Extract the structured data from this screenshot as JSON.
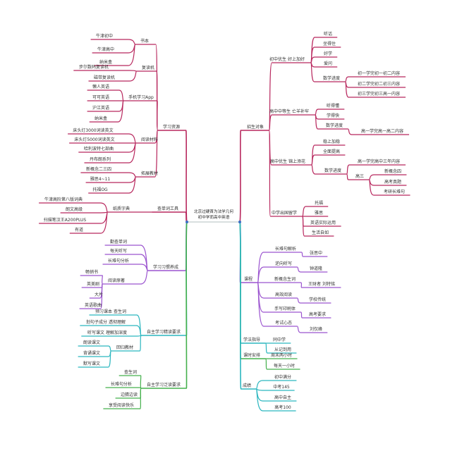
{
  "center": {
    "title_line1": "北京过硬首为法学几何",
    "title_line2": "初中学而高中英语"
  },
  "colors": {
    "pink": "#b8285e",
    "purple": "#9b54cf",
    "teal": "#2bb6bf",
    "green": "#44b04c",
    "hub": "#3a6fc4"
  },
  "left": [
    {
      "label": "学习资源",
      "color": "pink",
      "children": [
        {
          "label": "书本",
          "children": [
            {
              "label": "牛津初中"
            },
            {
              "label": "牛津高中"
            },
            {
              "label": "纳米盒"
            }
          ]
        },
        {
          "label": "复读机",
          "children": [
            {
              "label": "步尔数码复读机"
            },
            {
              "label": "磁带复读机"
            }
          ]
        },
        {
          "label": "手机学习App",
          "children": [
            {
              "label": "懒人英语"
            },
            {
              "label": "可可英语"
            },
            {
              "label": "沪江英语"
            },
            {
              "label": "纳米盒"
            }
          ]
        },
        {
          "label": "阅读材料",
          "children": [
            {
              "label": "床头灯3000词读英文"
            },
            {
              "label": "床头灯5000词读英文"
            },
            {
              "label": "哈利波特七部曲"
            },
            {
              "label": "丹布朗系列"
            }
          ]
        },
        {
          "label": "拓展教材",
          "children": [
            {
              "label": "新概念二三四"
            },
            {
              "label": "雅思4~11"
            },
            {
              "label": "托福OG"
            }
          ]
        }
      ]
    },
    {
      "label": "查单词工具",
      "color": "pink",
      "children": [
        {
          "label": "纸质字典",
          "children": [
            {
              "label": "牛津高阶第八版词典"
            },
            {
              "label": "朗文高级"
            },
            {
              "label": "扫描笔汉王A200PLUS"
            },
            {
              "label": "有道"
            }
          ]
        }
      ]
    },
    {
      "label": "学习习惯养成",
      "color": "purple",
      "children": [
        {
          "label": "勤查单词"
        },
        {
          "label": "每天听写"
        },
        {
          "label": "长难句分析"
        },
        {
          "label": "阅读原著",
          "children": [
            {
              "label": "畅销书"
            },
            {
              "label": "英美剧"
            },
            {
              "label": "大片"
            },
            {
              "label": "英语歌曲"
            }
          ]
        }
      ]
    },
    {
      "label": "自主学习精读要求",
      "color": "teal",
      "children": [
        {
          "label": "预习课本 查生词"
        },
        {
          "label": "划句子成分 透彻理解"
        },
        {
          "label": "听写课文 理解加深度"
        },
        {
          "label": "回归教材",
          "children": [
            {
              "label": "朗读课文"
            },
            {
              "label": "背诵课文"
            },
            {
              "label": "默写课文"
            }
          ]
        }
      ]
    },
    {
      "label": "自主学习泛读要求",
      "color": "green",
      "children": [
        {
          "label": "查生词"
        },
        {
          "label": "长难句分析"
        },
        {
          "label": "边猜边读"
        },
        {
          "label": "享受阅读快乐"
        }
      ]
    }
  ],
  "right": [
    {
      "label": "招生对象",
      "color": "pink",
      "children": [
        {
          "label": "初中优生 好上加好",
          "children": [
            {
              "label": "听话"
            },
            {
              "label": "坐得住"
            },
            {
              "label": "好学"
            },
            {
              "label": "爱问"
            },
            {
              "label": "数学进度",
              "children": [
                {
                  "label": "初一学完初一初二内容"
                },
                {
                  "label": "初二学完初二初三内容"
                },
                {
                  "label": "初三学完初三高一内容"
                }
              ]
            }
          ]
        },
        {
          "label": "高中中等生 亡羊补牢",
          "children": [
            {
              "label": "听得懂"
            },
            {
              "label": "学得快"
            },
            {
              "label": "数学进度",
              "children": [
                {
                  "label": "高一学完高一高二内容"
                }
              ]
            }
          ]
        },
        {
          "label": "高中优生 锦上添花",
          "children": [
            {
              "label": "稳上加稳"
            },
            {
              "label": "全面提高"
            },
            {
              "label": "数学进度",
              "children": [
                {
                  "label": "高一学完高中三年内容"
                },
                {
                  "label": "高三",
                  "children": [
                    {
                      "label": "新概念四"
                    },
                    {
                      "label": "高考真题"
                    },
                    {
                      "label": "考研长难句"
                    }
                  ]
                }
              ]
            }
          ]
        },
        {
          "label": "中学出国留学",
          "children": [
            {
              "label": "托福"
            },
            {
              "label": "雅思"
            },
            {
              "label": "英语实际运用"
            },
            {
              "label": "生活自如"
            }
          ]
        }
      ]
    },
    {
      "label": "课程",
      "color": "purple",
      "children": [
        {
          "label": "长难句解析",
          "children": [
            {
              "label": "张思中"
            }
          ]
        },
        {
          "label": "逆向听写",
          "children": [
            {
              "label": "钟道隆"
            }
          ]
        },
        {
          "label": "新概念生词",
          "children": [
            {
              "label": "王财者 刘特铭"
            }
          ]
        },
        {
          "label": "高效阅读",
          "children": [
            {
              "label": "学校传统"
            }
          ]
        },
        {
          "label": "手写印刷体",
          "children": [
            {
              "label": "高考要求"
            }
          ]
        },
        {
          "label": "考试心态",
          "children": [
            {
              "label": "刘仅峰"
            }
          ]
        }
      ]
    },
    {
      "label": "学法指导",
      "color": "teal",
      "children": [
        {
          "label": "同中学"
        },
        {
          "label": "从记到用"
        }
      ]
    },
    {
      "label": "课时安排",
      "color": "green",
      "children": [
        {
          "label": "周末两小时"
        },
        {
          "label": "每天一小时"
        }
      ]
    },
    {
      "label": "成绩",
      "color": "teal",
      "children": [
        {
          "label": "初中满分"
        },
        {
          "label": "中考145"
        },
        {
          "label": "高中自主"
        },
        {
          "label": "高考100"
        }
      ]
    }
  ]
}
